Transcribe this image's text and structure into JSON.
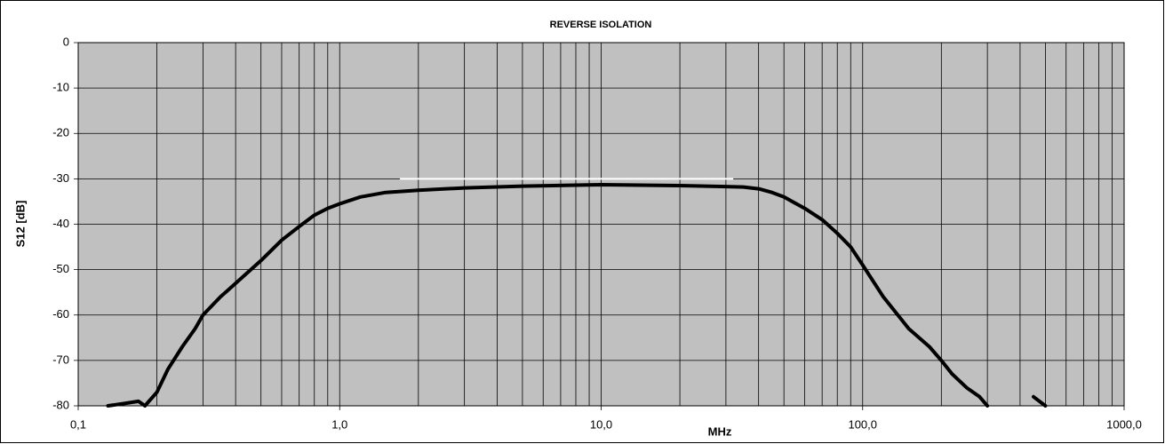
{
  "chart_data": {
    "type": "line",
    "title": "REVERSE ISOLATION",
    "x_label": "MHz",
    "y_label": "S12 [dB]",
    "x_scale": "log",
    "xlim": [
      0.1,
      1000
    ],
    "xticks": [
      {
        "value": 0.1,
        "label": "0,1"
      },
      {
        "value": 1,
        "label": "1,0"
      },
      {
        "value": 10,
        "label": "10,0"
      },
      {
        "value": 100,
        "label": "100,0"
      },
      {
        "value": 1000,
        "label": "1000,0"
      }
    ],
    "minor_grid": true,
    "ylim": [
      -80,
      0
    ],
    "yticks": [
      0,
      -10,
      -20,
      -30,
      -40,
      -50,
      -60,
      -70,
      -80
    ],
    "grid": true,
    "plot_background": "#c0c0c0",
    "series": [
      {
        "color": "#000000",
        "x": [
          0.13,
          0.15,
          0.17,
          0.18,
          0.2,
          0.22,
          0.25,
          0.28,
          0.3,
          0.35,
          0.4,
          0.5,
          0.6,
          0.7,
          0.8,
          0.9,
          1.0,
          1.2,
          1.5,
          2,
          3,
          5,
          10,
          20,
          30,
          35,
          40,
          45,
          50,
          60,
          70,
          80,
          90,
          100,
          120,
          150,
          180,
          200,
          220,
          250,
          280,
          300,
          400,
          450,
          500
        ],
        "values": [
          -80,
          -79.5,
          -79,
          -80,
          -77,
          -72,
          -67,
          -63,
          -60,
          -56,
          -53,
          -48,
          -43.5,
          -40.5,
          -38,
          -36.5,
          -35.5,
          -34,
          -33,
          -32.5,
          -32,
          -31.6,
          -31.3,
          -31.5,
          -31.7,
          -31.8,
          -32.2,
          -33,
          -34,
          -36.5,
          -39,
          -42,
          -45,
          -49,
          -56,
          -63,
          -67,
          -70,
          -73,
          -76,
          -78,
          -80,
          null,
          -78,
          -80
        ]
      }
    ],
    "reference_line": {
      "x": [
        1.7,
        32
      ],
      "y": -30,
      "color": "#ffffff"
    }
  }
}
